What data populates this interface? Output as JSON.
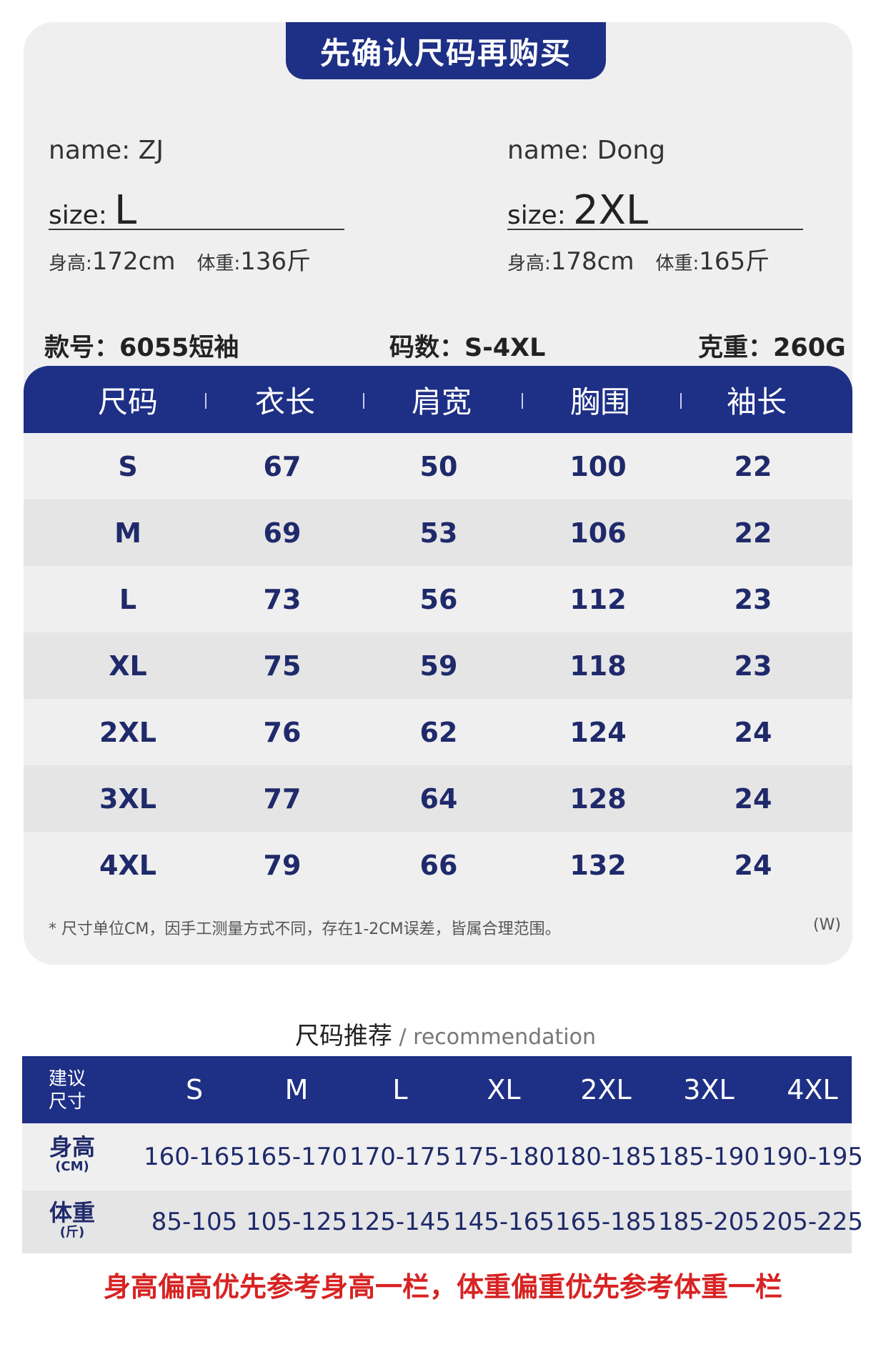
{
  "banner": "先确认尺码再购买",
  "models": [
    {
      "name": "name: ZJ",
      "size_prefix": "size:",
      "size": "L",
      "height_label": "身高:",
      "height": "172cm",
      "weight_label": "体重:",
      "weight": "136斤"
    },
    {
      "name": "name: Dong",
      "size_prefix": "size:",
      "size": "2XL",
      "height_label": "身高:",
      "height": "178cm",
      "weight_label": "体重:",
      "weight": "165斤"
    }
  ],
  "product": {
    "style": "款号：6055短袖",
    "sizes": "码数：S-4XL",
    "weight": "克重：260G"
  },
  "size_table": {
    "headers": [
      "尺码",
      "衣长",
      "肩宽",
      "胸围",
      "袖长"
    ],
    "rows": [
      [
        "S",
        "67",
        "50",
        "100",
        "22"
      ],
      [
        "M",
        "69",
        "53",
        "106",
        "22"
      ],
      [
        "L",
        "73",
        "56",
        "112",
        "23"
      ],
      [
        "XL",
        "75",
        "59",
        "118",
        "23"
      ],
      [
        "2XL",
        "76",
        "62",
        "124",
        "24"
      ],
      [
        "3XL",
        "77",
        "64",
        "128",
        "24"
      ],
      [
        "4XL",
        "79",
        "66",
        "132",
        "24"
      ]
    ]
  },
  "note": "* 尺寸单位CM，因手工测量方式不同，存在1-2CM误差，皆属合理范围。",
  "note_right": "(W)",
  "recommendation": {
    "title_zh": "尺码推荐",
    "title_en": " / recommendation",
    "corner_line1": "建议",
    "corner_line2": "尺寸",
    "sizes": [
      "S",
      "M",
      "L",
      "XL",
      "2XL",
      "3XL",
      "4XL"
    ],
    "height_label": "身高",
    "height_unit": "(CM)",
    "heights": [
      "160-165",
      "165-170",
      "170-175",
      "175-180",
      "180-185",
      "185-190",
      "190-195"
    ],
    "weight_label": "体重",
    "weight_unit": "(斤)",
    "weights": [
      "85-105",
      "105-125",
      "125-145",
      "145-165",
      "165-185",
      "185-205",
      "205-225"
    ]
  },
  "footer": "身高偏高优先参考身高一栏，体重偏重优先参考体重一栏",
  "colors": {
    "navy": "#1e2f86",
    "red": "#d72323",
    "card": "#efefef"
  }
}
